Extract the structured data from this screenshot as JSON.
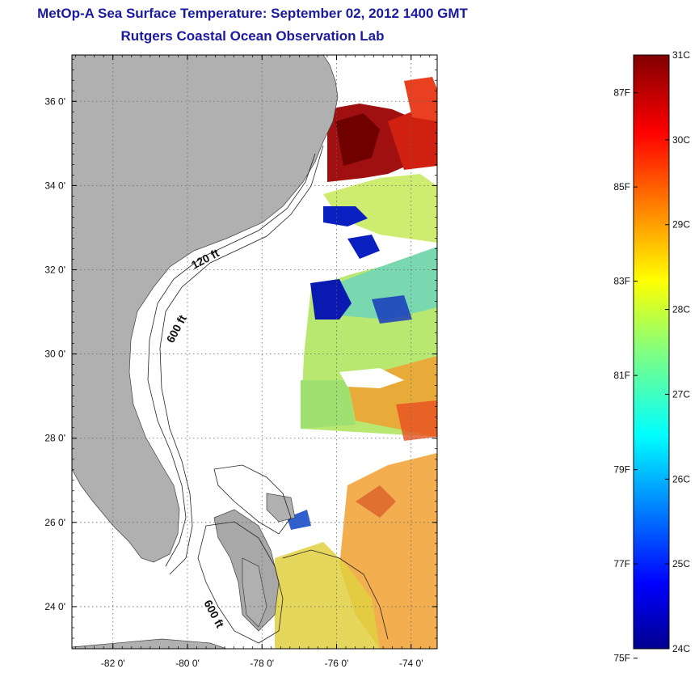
{
  "title": {
    "line1": "MetOp-A Sea Surface Temperature:  September 02, 2012 1400 GMT",
    "line2": "Rutgers Coastal Ocean Observation Lab"
  },
  "map": {
    "lat_labels": [
      "36 0'",
      "34 0'",
      "32 0'",
      "30 0'",
      "28 0'",
      "26 0'",
      "24 0'"
    ],
    "lon_labels": [
      "-82 0'",
      "-80 0'",
      "-78 0'",
      "-76 0'",
      "-74 0'"
    ],
    "lat_values": [
      36,
      34,
      32,
      30,
      28,
      26,
      24
    ],
    "lon_values": [
      -82,
      -80,
      -78,
      -76,
      -74
    ],
    "lat_range": [
      23,
      37.1
    ],
    "lon_range": [
      -83.1,
      -73.3
    ],
    "contour_labels": [
      "120 ft",
      "600 ft",
      "600 ft"
    ],
    "land_color": "#b0b0b0"
  },
  "colorbar": {
    "celsius_labels": [
      "31C",
      "30C",
      "29C",
      "28C",
      "27C",
      "26C",
      "25C",
      "24C"
    ],
    "fahrenheit_labels": [
      "87F",
      "85F",
      "83F",
      "81F",
      "79F",
      "77F",
      "75F"
    ],
    "range_c": [
      24,
      31
    ],
    "colormap": "jet"
  }
}
